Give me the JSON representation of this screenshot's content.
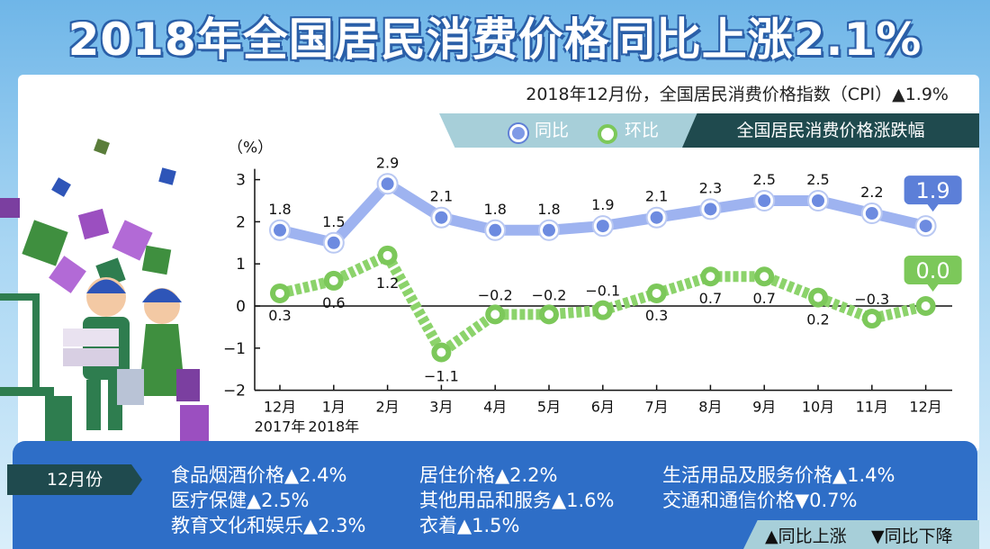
{
  "headline": "2018年全国居民消费价格同比上涨2.1%",
  "cpi_note": "2018年12月份，全国居民消费价格指数（CPI）▲1.9%",
  "legend": {
    "title": "全国居民消费价格涨跌幅",
    "yoy": "同比",
    "mom": "环比"
  },
  "colors": {
    "yoy": "#9eb3f0",
    "mom": "#8cd36b",
    "dark": "#1f4a4e",
    "blue": "#2e6ec7"
  },
  "chart_data": {
    "type": "line",
    "ylabel": "（%）",
    "ylim": [
      -2,
      3
    ],
    "yticks": [
      "3",
      "2",
      "1",
      "0",
      "−1",
      "−2"
    ],
    "categories": [
      "12月",
      "1月",
      "2月",
      "3月",
      "4月",
      "5月",
      "6月",
      "7月",
      "8月",
      "9月",
      "10月",
      "11月",
      "12月"
    ],
    "category_years": [
      "2017年",
      "2018年",
      "",
      "",
      "",
      "",
      "",
      "",
      "",
      "",
      "",
      "",
      ""
    ],
    "series": [
      {
        "name": "同比",
        "values": [
          1.8,
          1.5,
          2.9,
          2.1,
          1.8,
          1.8,
          1.9,
          2.1,
          2.3,
          2.5,
          2.5,
          2.2,
          1.9
        ],
        "labels": [
          "1.8",
          "1.5",
          "2.9",
          "2.1",
          "1.8",
          "1.8",
          "1.9",
          "2.1",
          "2.3",
          "2.5",
          "2.5",
          "2.2",
          "1.9"
        ]
      },
      {
        "name": "环比",
        "values": [
          0.3,
          0.6,
          1.2,
          -1.1,
          -0.2,
          -0.2,
          -0.1,
          0.3,
          0.7,
          0.7,
          0.2,
          -0.3,
          0.0
        ],
        "labels": [
          "0.3",
          "0.6",
          "1.2",
          "−1.1",
          "−0.2",
          "−0.2",
          "−0.1",
          "0.3",
          "0.7",
          "0.7",
          "0.2",
          "−0.3",
          "0.0"
        ]
      }
    ]
  },
  "bottom": {
    "month_label": "12月份",
    "items": [
      "食品烟酒价格▲2.4%",
      "医疗保健▲2.5%",
      "教育文化和娱乐▲2.3%",
      "居住价格▲2.2%",
      "其他用品和服务▲1.6%",
      "衣着▲1.5%",
      "生活用品及服务价格▲1.4%",
      "交通和通信价格▼0.7%"
    ],
    "note_up": "▲同比上涨",
    "note_down": "▼同比下降"
  }
}
